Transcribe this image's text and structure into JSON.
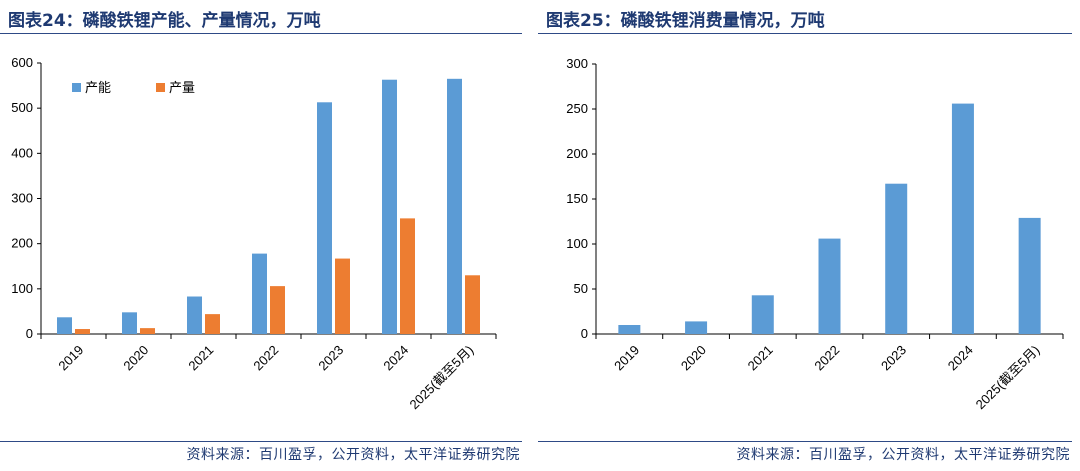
{
  "source_text": "资料来源：百川盈孚，公开资料，太平洋证券研究院",
  "colors": {
    "capacity": "#5b9bd5",
    "production": "#ed7d31",
    "title": "#1f3a72"
  },
  "chart_data": [
    {
      "type": "bar",
      "title": "图表24：磷酸铁锂产能、产量情况，万吨",
      "categories": [
        "2019",
        "2020",
        "2021",
        "2022",
        "2023",
        "2024",
        "2025(截至5月)"
      ],
      "series": [
        {
          "name": "产能",
          "values": [
            37,
            48,
            83,
            178,
            513,
            563,
            565
          ]
        },
        {
          "name": "产量",
          "values": [
            11,
            13,
            44,
            106,
            167,
            256,
            130
          ]
        }
      ],
      "ylim": [
        0,
        600
      ],
      "yticks": [
        "0",
        "100",
        "200",
        "300",
        "400",
        "500",
        "600"
      ],
      "legend": "top-left"
    },
    {
      "type": "bar",
      "title": "图表25：磷酸铁锂消费量情况，万吨",
      "categories": [
        "2019",
        "2020",
        "2021",
        "2022",
        "2023",
        "2024",
        "2025(截至5月)"
      ],
      "series": [
        {
          "values": [
            10,
            14,
            43,
            106,
            167,
            256,
            129
          ]
        }
      ],
      "ylim": [
        0,
        300
      ],
      "yticks": [
        "0",
        "50",
        "100",
        "150",
        "200",
        "250",
        "300"
      ]
    }
  ]
}
